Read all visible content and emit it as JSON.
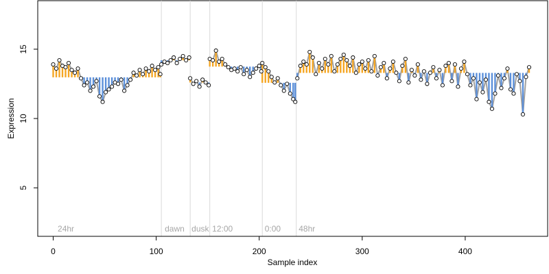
{
  "chart_data": {
    "type": "scatter",
    "title": "",
    "xlabel": "Sample index",
    "ylabel": "Expression",
    "xlim": [
      -15,
      480
    ],
    "ylim": [
      1.5,
      18.5
    ],
    "xticks": [
      0,
      100,
      200,
      300,
      400
    ],
    "yticks": [
      5,
      10,
      15
    ],
    "grid": false,
    "legend": "none",
    "colors": {
      "above": "#f5a623",
      "below": "#5b8fd9",
      "connector": "#a0a0a0",
      "vline": "#d9d9d9",
      "point_stroke": "#000000",
      "point_fill": "#ffffff",
      "annotation": "#a6a6a6"
    },
    "vlines": [
      105,
      133,
      152,
      203,
      236
    ],
    "annotations": [
      {
        "x": 3,
        "text": "24hr"
      },
      {
        "x": 107,
        "text": "dawn"
      },
      {
        "x": 133,
        "text": "dusk"
      },
      {
        "x": 153,
        "text": "12:00"
      },
      {
        "x": 204,
        "text": "0:00"
      },
      {
        "x": 237,
        "text": "48hr"
      }
    ],
    "reference_level": 13.3,
    "segments": [
      {
        "x0": 0,
        "x1": 104,
        "points": [
          [
            0,
            13.9
          ],
          [
            3,
            13.6
          ],
          [
            6,
            14.2
          ],
          [
            9,
            13.8
          ],
          [
            12,
            13.7
          ],
          [
            15,
            14.0
          ],
          [
            18,
            13.5
          ],
          [
            21,
            13.3
          ],
          [
            24,
            13.6
          ],
          [
            27,
            12.9
          ],
          [
            30,
            12.4
          ],
          [
            33,
            12.6
          ],
          [
            36,
            12.0
          ],
          [
            39,
            12.3
          ],
          [
            42,
            12.7
          ],
          [
            45,
            11.6
          ],
          [
            48,
            11.2
          ],
          [
            51,
            11.9
          ],
          [
            54,
            12.1
          ],
          [
            57,
            12.3
          ],
          [
            60,
            12.6
          ],
          [
            63,
            12.5
          ],
          [
            66,
            12.8
          ],
          [
            69,
            12.0
          ],
          [
            72,
            12.4
          ],
          [
            75,
            12.8
          ],
          [
            78,
            13.3
          ],
          [
            81,
            13.1
          ],
          [
            84,
            13.5
          ],
          [
            87,
            13.2
          ],
          [
            90,
            13.6
          ],
          [
            93,
            13.4
          ],
          [
            96,
            13.8
          ],
          [
            99,
            13.5
          ],
          [
            102,
            13.7
          ],
          [
            104,
            13.2
          ]
        ]
      },
      {
        "x0": 105,
        "x1": 132,
        "points": [
          [
            105,
            13.9
          ],
          [
            108,
            14.1
          ],
          [
            111,
            14.0
          ],
          [
            114,
            14.2
          ],
          [
            117,
            14.4
          ],
          [
            120,
            14.0
          ],
          [
            123,
            14.3
          ],
          [
            126,
            14.5
          ],
          [
            129,
            14.2
          ],
          [
            132,
            14.4
          ]
        ]
      },
      {
        "x0": 133,
        "x1": 151,
        "points": [
          [
            133,
            12.9
          ],
          [
            136,
            12.5
          ],
          [
            139,
            12.7
          ],
          [
            142,
            12.3
          ],
          [
            145,
            12.8
          ],
          [
            148,
            12.6
          ],
          [
            151,
            12.4
          ]
        ]
      },
      {
        "x0": 152,
        "x1": 202,
        "points": [
          [
            152,
            14.3
          ],
          [
            155,
            14.2
          ],
          [
            158,
            14.9
          ],
          [
            161,
            14.1
          ],
          [
            164,
            14.3
          ],
          [
            167,
            13.9
          ],
          [
            170,
            13.7
          ],
          [
            173,
            13.5
          ],
          [
            176,
            13.6
          ],
          [
            179,
            13.4
          ],
          [
            182,
            13.7
          ],
          [
            185,
            13.2
          ],
          [
            188,
            13.5
          ],
          [
            191,
            13.0
          ],
          [
            194,
            13.3
          ],
          [
            197,
            13.6
          ],
          [
            200,
            13.8
          ],
          [
            202,
            13.4
          ]
        ]
      },
      {
        "x0": 203,
        "x1": 235,
        "points": [
          [
            203,
            14.0
          ],
          [
            206,
            13.7
          ],
          [
            209,
            13.4
          ],
          [
            212,
            13.0
          ],
          [
            215,
            12.6
          ],
          [
            218,
            12.9
          ],
          [
            221,
            12.4
          ],
          [
            224,
            12.0
          ],
          [
            227,
            12.5
          ],
          [
            230,
            11.8
          ],
          [
            233,
            11.4
          ],
          [
            235,
            11.2
          ]
        ]
      },
      {
        "x0": 236,
        "x1": 462,
        "points": [
          [
            237,
            12.9
          ],
          [
            240,
            13.8
          ],
          [
            243,
            14.1
          ],
          [
            246,
            13.9
          ],
          [
            249,
            14.8
          ],
          [
            252,
            14.4
          ],
          [
            255,
            13.2
          ],
          [
            258,
            14.0
          ],
          [
            261,
            13.6
          ],
          [
            264,
            14.3
          ],
          [
            267,
            13.9
          ],
          [
            270,
            14.5
          ],
          [
            273,
            13.4
          ],
          [
            276,
            13.9
          ],
          [
            279,
            14.3
          ],
          [
            282,
            14.6
          ],
          [
            285,
            14.2
          ],
          [
            288,
            13.8
          ],
          [
            291,
            14.4
          ],
          [
            294,
            13.3
          ],
          [
            297,
            13.9
          ],
          [
            300,
            14.1
          ],
          [
            303,
            13.6
          ],
          [
            306,
            14.2
          ],
          [
            309,
            13.4
          ],
          [
            312,
            14.5
          ],
          [
            315,
            13.1
          ],
          [
            318,
            13.7
          ],
          [
            321,
            14.0
          ],
          [
            324,
            12.9
          ],
          [
            327,
            13.6
          ],
          [
            330,
            14.1
          ],
          [
            333,
            13.3
          ],
          [
            336,
            12.7
          ],
          [
            339,
            13.8
          ],
          [
            342,
            14.3
          ],
          [
            345,
            12.6
          ],
          [
            348,
            13.5
          ],
          [
            351,
            13.1
          ],
          [
            354,
            13.9
          ],
          [
            357,
            12.8
          ],
          [
            360,
            13.4
          ],
          [
            363,
            12.5
          ],
          [
            366,
            13.3
          ],
          [
            369,
            13.7
          ],
          [
            372,
            12.9
          ],
          [
            375,
            13.5
          ],
          [
            378,
            12.4
          ],
          [
            381,
            13.8
          ],
          [
            384,
            14.0
          ],
          [
            387,
            12.7
          ],
          [
            390,
            13.9
          ],
          [
            393,
            12.3
          ],
          [
            396,
            13.6
          ],
          [
            399,
            14.1
          ],
          [
            402,
            13.2
          ],
          [
            405,
            12.4
          ],
          [
            408,
            12.9
          ],
          [
            411,
            11.4
          ],
          [
            414,
            12.6
          ],
          [
            417,
            11.9
          ],
          [
            420,
            12.8
          ],
          [
            423,
            11.2
          ],
          [
            426,
            10.7
          ],
          [
            429,
            11.8
          ],
          [
            432,
            13.1
          ],
          [
            435,
            12.2
          ],
          [
            438,
            12.9
          ],
          [
            441,
            13.6
          ],
          [
            444,
            12.1
          ],
          [
            447,
            11.8
          ],
          [
            450,
            13.2
          ],
          [
            453,
            12.7
          ],
          [
            456,
            10.3
          ],
          [
            459,
            13.0
          ],
          [
            462,
            13.7
          ]
        ]
      }
    ]
  }
}
